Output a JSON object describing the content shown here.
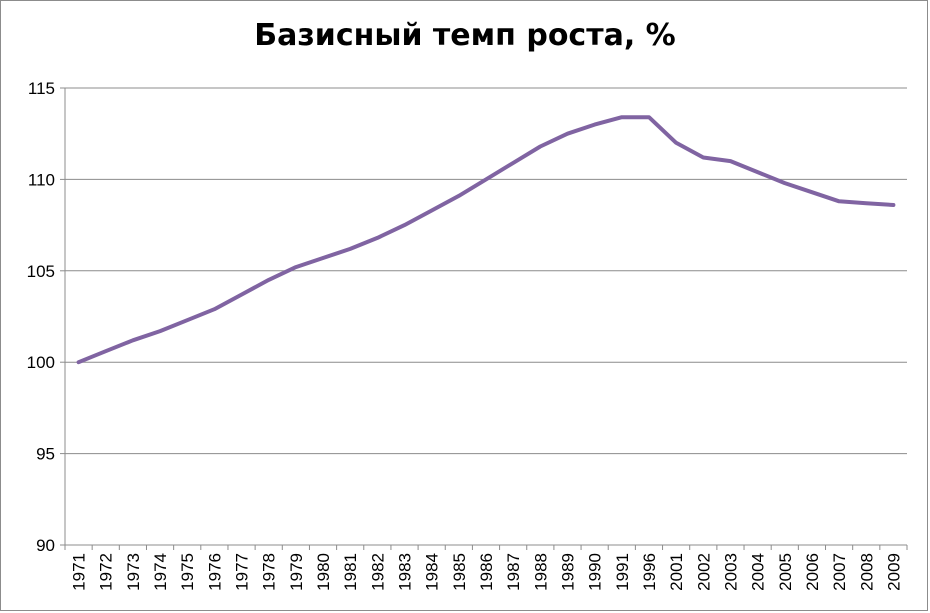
{
  "chart_data": {
    "type": "line",
    "title": "Базисный темп роста, %",
    "xlabel": "",
    "ylabel": "",
    "categories": [
      "1971",
      "1972",
      "1973",
      "1974",
      "1975",
      "1976",
      "1977",
      "1978",
      "1979",
      "1980",
      "1981",
      "1982",
      "1983",
      "1984",
      "1985",
      "1986",
      "1987",
      "1988",
      "1989",
      "1990",
      "1991",
      "1996",
      "2001",
      "2002",
      "2003",
      "2004",
      "2005",
      "2006",
      "2007",
      "2008",
      "2009"
    ],
    "series": [
      {
        "values": [
          100.0,
          100.6,
          101.2,
          101.7,
          102.3,
          102.9,
          103.7,
          104.5,
          105.2,
          105.7,
          106.2,
          106.8,
          107.5,
          108.3,
          109.1,
          110.0,
          110.9,
          111.8,
          112.5,
          113.0,
          113.4,
          113.4,
          112.0,
          111.2,
          111.0,
          110.4,
          109.8,
          109.3,
          108.8,
          108.7,
          108.6
        ]
      }
    ],
    "ylim": [
      90,
      115
    ],
    "yticks": [
      90,
      95,
      100,
      105,
      110,
      115
    ],
    "grid": true,
    "legend": "none",
    "line_color": "#8064A2",
    "grid_color": "#8c8c8c"
  }
}
